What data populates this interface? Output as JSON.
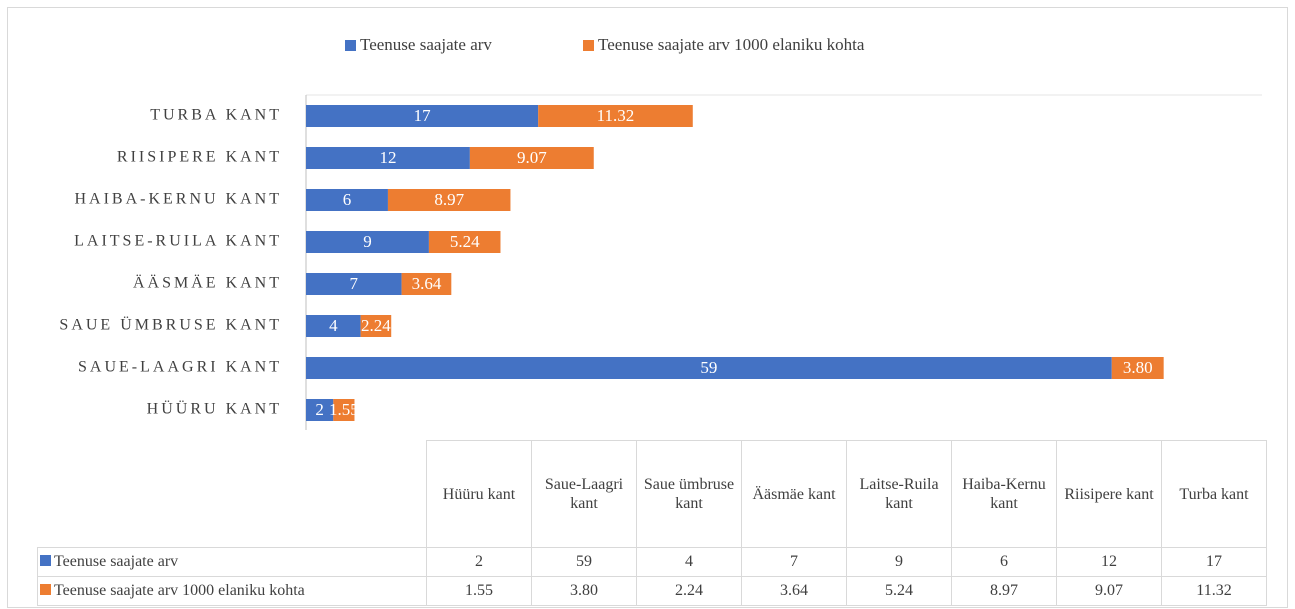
{
  "chart_data": {
    "type": "stacked_bar_horizontal",
    "categories": [
      "Hüüru kant",
      "Saue-Laagri kant",
      "Saue ümbruse kant",
      "Ääsmäe kant",
      "Laitse-Ruila kant",
      "Haiba-Kernu kant",
      "Riisipere kant",
      "Turba kant"
    ],
    "series": [
      {
        "name": "Teenuse saajate arv",
        "color": "#4472c4",
        "values": [
          2,
          59,
          4,
          7,
          9,
          6,
          12,
          17
        ]
      },
      {
        "name": "Teenuse saajate arv 1000 elaniku kohta",
        "color": "#ed7d31",
        "values": [
          1.55,
          3.8,
          2.24,
          3.64,
          5.24,
          8.97,
          9.07,
          11.32
        ],
        "value_labels": [
          "1.55",
          "3.80",
          "2.24",
          "3.64",
          "5.24",
          "8.97",
          "9.07",
          "11.32"
        ]
      }
    ],
    "xlim": [
      0,
      70
    ],
    "legend": "top",
    "data_table": true
  }
}
